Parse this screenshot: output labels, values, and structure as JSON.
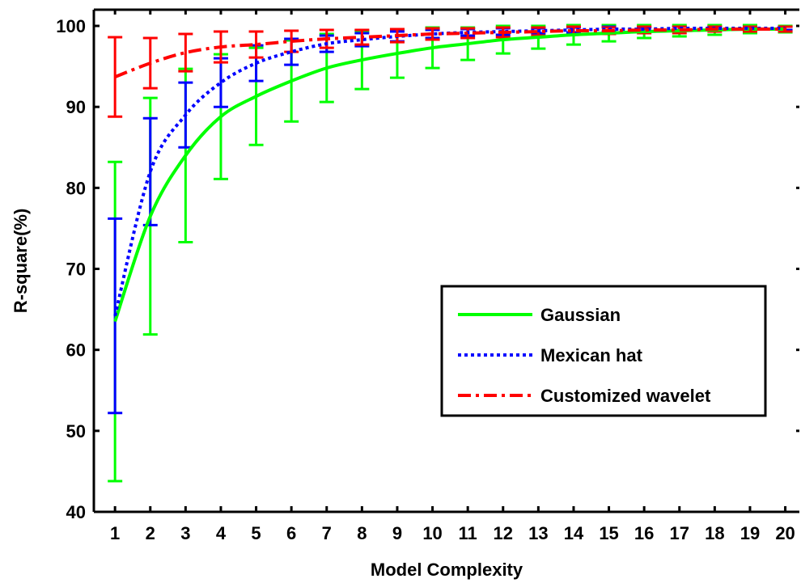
{
  "chart_data": {
    "type": "line",
    "xlabel": "Model Complexity",
    "ylabel": "R-square(%)",
    "x": [
      1,
      2,
      3,
      4,
      5,
      6,
      7,
      8,
      9,
      10,
      11,
      12,
      13,
      14,
      15,
      16,
      17,
      18,
      19,
      20
    ],
    "xlim": [
      0.4,
      20.4
    ],
    "ylim": [
      40,
      102
    ],
    "yticks": [
      40,
      50,
      60,
      70,
      80,
      90,
      100
    ],
    "xticks": [
      1,
      2,
      3,
      4,
      5,
      6,
      7,
      8,
      9,
      10,
      11,
      12,
      13,
      14,
      15,
      16,
      17,
      18,
      19,
      20
    ],
    "grid": false,
    "legend_position": "center-right",
    "series": [
      {
        "name": "Gaussian",
        "color": "#00ff00",
        "linestyle": "solid",
        "values": [
          63.5,
          76.5,
          84.0,
          88.8,
          91.3,
          93.2,
          94.8,
          95.8,
          96.6,
          97.3,
          97.8,
          98.3,
          98.6,
          98.9,
          99.1,
          99.3,
          99.4,
          99.5,
          99.6,
          99.6
        ],
        "err": [
          19.7,
          14.6,
          10.7,
          7.7,
          6.0,
          5.0,
          4.2,
          3.6,
          3.0,
          2.5,
          2.0,
          1.7,
          1.4,
          1.2,
          1.0,
          0.8,
          0.7,
          0.6,
          0.5,
          0.4
        ]
      },
      {
        "name": "Mexican hat",
        "color": "#0000ff",
        "linestyle": "dotted",
        "values": [
          64.2,
          82.0,
          89.0,
          93.0,
          95.4,
          96.8,
          97.8,
          98.3,
          98.7,
          99.0,
          99.2,
          99.3,
          99.4,
          99.5,
          99.6,
          99.6,
          99.7,
          99.7,
          99.7,
          99.7
        ],
        "err": [
          12.0,
          6.6,
          4.0,
          3.0,
          2.2,
          1.6,
          1.0,
          0.8,
          0.6,
          0.5,
          0.4,
          0.4,
          0.3,
          0.3,
          0.3,
          0.2,
          0.2,
          0.2,
          0.2,
          0.2
        ]
      },
      {
        "name": "Customized wavelet",
        "color": "#ff0000",
        "linestyle": "dashdot",
        "values": [
          93.7,
          95.4,
          96.7,
          97.4,
          97.7,
          98.1,
          98.4,
          98.6,
          98.8,
          99.0,
          99.1,
          99.2,
          99.3,
          99.4,
          99.4,
          99.5,
          99.5,
          99.6,
          99.6,
          99.6
        ],
        "err": [
          4.9,
          3.1,
          2.3,
          1.9,
          1.6,
          1.3,
          1.1,
          0.9,
          0.8,
          0.7,
          0.6,
          0.6,
          0.5,
          0.5,
          0.4,
          0.4,
          0.4,
          0.3,
          0.3,
          0.3
        ]
      }
    ]
  }
}
